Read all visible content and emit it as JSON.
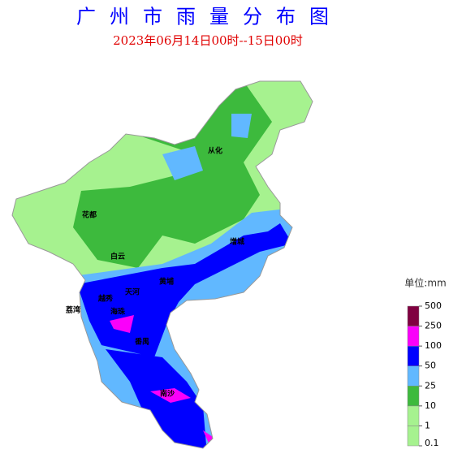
{
  "header": {
    "title": "广州市雨量分布图",
    "subtitle": "2023年06月14日00时--15日00时"
  },
  "map": {
    "labels": [
      "从化",
      "花都",
      "白云",
      "增城",
      "黄埔",
      "天河",
      "越秀",
      "荔湾",
      "海珠",
      "番禺",
      "南沙"
    ]
  },
  "legend": {
    "unit": "单位:mm",
    "ticks": [
      "0.1",
      "1",
      "10",
      "25",
      "50",
      "100",
      "250",
      "500"
    ],
    "colors": [
      "#a6f28f",
      "#a6f28f",
      "#3dba3d",
      "#61b8ff",
      "#0000ff",
      "#fa00fa",
      "#800040"
    ]
  }
}
